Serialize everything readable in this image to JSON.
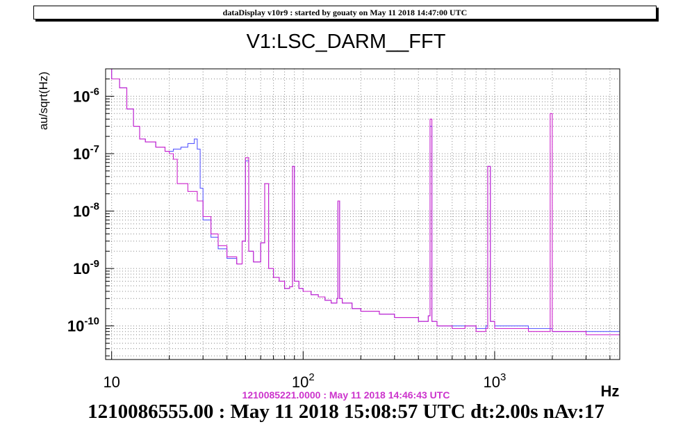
{
  "banner": "dataDisplay v10r9 : started by gouaty on May 11 2018 14:47:00 UTC",
  "footer": "1210086555.00 : May 11 2018 15:08:57 UTC dt:2.00s nAv:17",
  "colors": {
    "current": "#5a5aff",
    "reference": "#cc22cc",
    "axes": "#000000",
    "grid": "#888888"
  },
  "chart_data": {
    "type": "line",
    "title": "V1:LSC_DARM__FFT",
    "xlabel": "Hz",
    "ylabel": "au/sqrt(Hz)",
    "xscale": "log",
    "yscale": "log",
    "xlim": [
      9.3,
      4500
    ],
    "ylim": [
      2.6e-11,
      3e-06
    ],
    "grid": true,
    "x_ticks": [
      {
        "value": 10,
        "base": "10",
        "exp": ""
      },
      {
        "value": 100,
        "base": "10",
        "exp": "2"
      },
      {
        "value": 1000,
        "base": "10",
        "exp": "3"
      }
    ],
    "y_ticks": [
      {
        "value": 1e-06,
        "base": "10",
        "exp": "-6"
      },
      {
        "value": 1e-07,
        "base": "10",
        "exp": "-7"
      },
      {
        "value": 1e-08,
        "base": "10",
        "exp": "-8"
      },
      {
        "value": 1e-09,
        "base": "10",
        "exp": "-9"
      },
      {
        "value": 1e-10,
        "base": "10",
        "exp": "-10"
      }
    ],
    "series": [
      {
        "role": "current",
        "x": [
          9.3,
          10,
          11,
          12,
          13,
          14,
          15,
          17,
          19,
          21,
          23,
          25,
          27,
          28,
          29,
          30,
          33,
          36,
          40,
          45,
          48,
          50,
          52,
          55,
          60,
          63,
          66,
          70,
          75,
          80,
          85,
          88,
          90,
          95,
          100,
          110,
          120,
          130,
          140,
          150,
          152,
          155,
          160,
          180,
          200,
          250,
          300,
          400,
          450,
          460,
          470,
          500,
          600,
          700,
          800,
          900,
          920,
          950,
          1000,
          1500,
          2000,
          3000,
          4000,
          4500
        ],
        "y": [
          3e-06,
          2e-06,
          1.4e-06,
          6e-07,
          3e-07,
          1.8e-07,
          1.6e-07,
          1.3e-07,
          1.1e-07,
          1.2e-07,
          1.3e-07,
          1.5e-07,
          1.8e-07,
          1.2e-07,
          2.5e-08,
          7e-09,
          3.5e-09,
          2.2e-09,
          1.5e-09,
          1.2e-09,
          3e-09,
          7.5e-08,
          2e-09,
          1.3e-09,
          2.8e-09,
          3e-08,
          1e-09,
          7e-10,
          6e-10,
          4.5e-10,
          4.8e-10,
          6e-08,
          6e-10,
          4.5e-10,
          4e-10,
          3.5e-10,
          3.2e-10,
          2.8e-10,
          2.5e-10,
          3e-10,
          1.5e-08,
          3e-10,
          2.5e-10,
          2e-10,
          1.8e-10,
          1.6e-10,
          1.4e-10,
          1.2e-10,
          1.5e-10,
          3e-07,
          1.2e-10,
          1e-10,
          1e-10,
          1e-10,
          9e-11,
          1e-10,
          6e-08,
          1.2e-10,
          1e-10,
          9e-11,
          8e-11,
          8e-11,
          8e-11,
          8e-11
        ]
      },
      {
        "role": "reference",
        "label": "1210085221.0000 : May 11 2018 14:46:43 UTC",
        "x": [
          9.3,
          10,
          11,
          12,
          13,
          14,
          15,
          17,
          19,
          20,
          21,
          22,
          25,
          28,
          30,
          33,
          36,
          40,
          45,
          48,
          50,
          52,
          55,
          60,
          63,
          66,
          70,
          75,
          80,
          85,
          88,
          90,
          95,
          100,
          110,
          120,
          130,
          140,
          150,
          152,
          155,
          160,
          180,
          200,
          250,
          300,
          400,
          450,
          460,
          470,
          500,
          600,
          700,
          800,
          900,
          920,
          950,
          1000,
          1500,
          1900,
          1950,
          2000,
          3000,
          4000,
          4500
        ],
        "y": [
          3e-06,
          2e-06,
          1.4e-06,
          6e-07,
          3e-07,
          1.8e-07,
          1.6e-07,
          1.3e-07,
          1.1e-07,
          1e-07,
          8e-08,
          3e-08,
          2.2e-08,
          1.5e-08,
          8e-09,
          4e-09,
          2.5e-09,
          1.6e-09,
          1.2e-09,
          3e-09,
          8.5e-08,
          2e-09,
          1.3e-09,
          2.8e-09,
          3e-08,
          1e-09,
          7e-10,
          6e-10,
          4.5e-10,
          4.8e-10,
          6e-08,
          6e-10,
          4.5e-10,
          4e-10,
          3.5e-10,
          3.2e-10,
          2.8e-10,
          2.5e-10,
          3e-10,
          1.5e-08,
          3e-10,
          2.5e-10,
          2e-10,
          1.8e-10,
          1.6e-10,
          1.4e-10,
          1.2e-10,
          1.5e-10,
          4e-07,
          1.2e-10,
          1e-10,
          9e-11,
          1e-10,
          8e-11,
          9e-11,
          6e-08,
          1.2e-10,
          9e-11,
          8e-11,
          8e-11,
          5e-07,
          8e-11,
          7e-11,
          7e-11,
          7e-11
        ]
      }
    ]
  }
}
